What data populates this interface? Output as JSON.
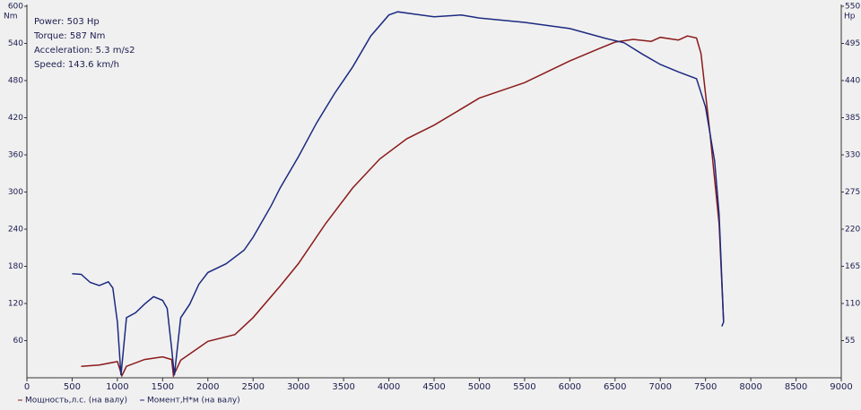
{
  "chart_data": {
    "type": "line",
    "info": [
      "Power: 503 Hp",
      "Torque: 587 Nm",
      "Acceleration: 5.3 m/s2",
      "Speed: 143.6 km/h"
    ],
    "y_label": "Nm",
    "y2_label": "Hp",
    "xlim": [
      0,
      9000
    ],
    "xticks": [
      0,
      500,
      1000,
      1500,
      2000,
      2500,
      3000,
      3500,
      4000,
      4500,
      5000,
      5500,
      6000,
      6500,
      7000,
      7500,
      8000,
      8500,
      9000
    ],
    "ylim": [
      0,
      600
    ],
    "yticks": [
      60,
      120,
      180,
      240,
      300,
      360,
      420,
      480,
      540,
      600
    ],
    "y2lim": [
      0,
      550
    ],
    "y2ticks": [
      55,
      110,
      165,
      220,
      275,
      330,
      385,
      440,
      495,
      550
    ],
    "series": [
      {
        "name": "Мощность,л.с. (на валу)",
        "color": "#8b1a1a",
        "axis": "y2",
        "x": [
          600,
          800,
          1000,
          1050,
          1100,
          1300,
          1500,
          1600,
          1620,
          1700,
          2000,
          2300,
          2500,
          2800,
          3000,
          3300,
          3600,
          3900,
          4200,
          4500,
          4800,
          5000,
          5500,
          6000,
          6300,
          6500,
          6700,
          6900,
          7000,
          7200,
          7300,
          7400,
          7450,
          7550,
          7650,
          7700
        ],
        "values": [
          17,
          19,
          24,
          3,
          17,
          27,
          31,
          27,
          3,
          26,
          54,
          64,
          89,
          136,
          169,
          228,
          281,
          324,
          354,
          374,
          398,
          414,
          437,
          469,
          486,
          497,
          501,
          498,
          504,
          500,
          506,
          503,
          480,
          361,
          228,
          83
        ]
      },
      {
        "name": "Момент,Н*м (на валу)",
        "color": "#1c2a80",
        "x": [
          500,
          600,
          700,
          800,
          900,
          950,
          1000,
          1040,
          1100,
          1200,
          1300,
          1400,
          1500,
          1550,
          1600,
          1630,
          1700,
          1800,
          1900,
          2000,
          2200,
          2400,
          2500,
          2700,
          2800,
          3000,
          3200,
          3400,
          3600,
          3800,
          4000,
          4100,
          4300,
          4500,
          4800,
          5000,
          5500,
          6000,
          6400,
          6600,
          6800,
          7000,
          7200,
          7400,
          7500,
          7600,
          7650,
          7700,
          7680
        ],
        "values": [
          168,
          167,
          154,
          149,
          155,
          145,
          90,
          4,
          97,
          105,
          119,
          131,
          125,
          112,
          47,
          4,
          97,
          119,
          151,
          170,
          184,
          206,
          227,
          278,
          307,
          357,
          411,
          459,
          502,
          552,
          586,
          591,
          587,
          583,
          586,
          581,
          574,
          564,
          548,
          541,
          523,
          506,
          494,
          483,
          437,
          350,
          264,
          90,
          83
        ]
      }
    ]
  }
}
